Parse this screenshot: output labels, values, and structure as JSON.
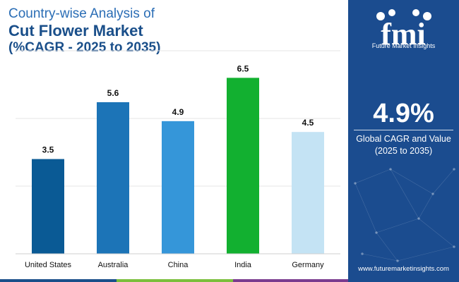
{
  "title": {
    "line1": "Country-wise Analysis of",
    "line2": "Cut Flower Market",
    "line3": "(%CAGR - 2025 to 2035)"
  },
  "chart_data": {
    "type": "bar",
    "categories": [
      "United States",
      "Australia",
      "China",
      "India",
      "Germany"
    ],
    "values": [
      3.5,
      5.6,
      4.9,
      6.5,
      4.5
    ],
    "data_labels": [
      "3.5",
      "5.6",
      "4.9",
      "6.5",
      "4.5"
    ],
    "bar_colors": [
      "#0a5a95",
      "#1c74b7",
      "#3596d9",
      "#12b030",
      "#c4e3f4"
    ],
    "ylim": [
      0,
      7.5
    ],
    "grid": true,
    "gridline_values": [
      2.5,
      5.0
    ],
    "title": "",
    "xlabel": "",
    "ylabel": ""
  },
  "sidebar": {
    "logo_label": "Future Market Insights",
    "headline_value": "4.9%",
    "headline_label_line1": "Global CAGR and Value",
    "headline_label_line2": "(2025 to 2035)",
    "website": "www.futuremarketinsights.com"
  },
  "colors": {
    "sidebar_bg": "#1b4c8f",
    "title_primary": "#1a4f8a",
    "title_secondary": "#2a6db5",
    "bottom_bar": [
      "#1a4f8a",
      "#7bbf3c",
      "#7a3b8f"
    ]
  }
}
